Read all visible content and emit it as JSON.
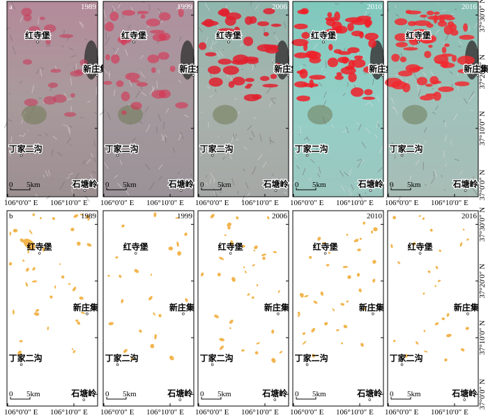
{
  "rows": [
    {
      "label": "a",
      "years": [
        "1989",
        "1999",
        "2006",
        "2010",
        "2016"
      ]
    },
    {
      "label": "b",
      "years": [
        "1989",
        "1999",
        "2006",
        "2010",
        "2016"
      ]
    }
  ],
  "places": [
    "红寺堡",
    "新庄集",
    "丁家二沟",
    "石塘岭"
  ],
  "scale": {
    "start": "0",
    "end": "5km"
  },
  "lon_labels": [
    "106°0′0″ E",
    "106°10′0″ E"
  ],
  "lat_labels": [
    "37°30′0″ N",
    "37°20′0″ N",
    "37°10′0″ N",
    "37°0′0″ N"
  ]
}
